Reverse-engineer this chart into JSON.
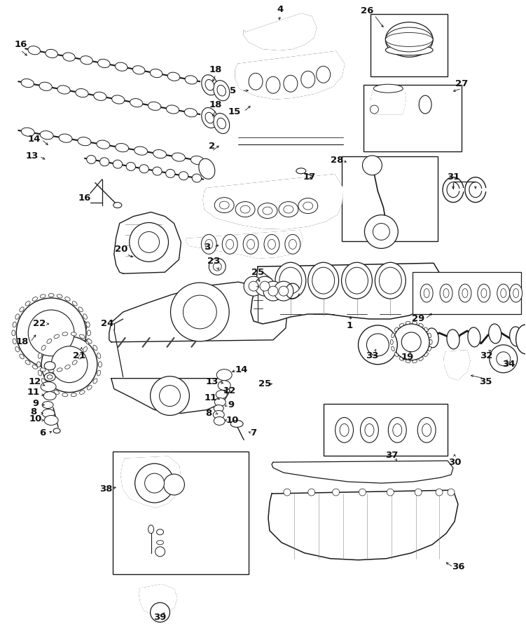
{
  "bg_color": "#ffffff",
  "fig_width": 7.51,
  "fig_height": 9.0,
  "dpi": 100,
  "line_color": "#1a1a1a",
  "label_fontsize": 9.5,
  "label_fontweight": "bold"
}
